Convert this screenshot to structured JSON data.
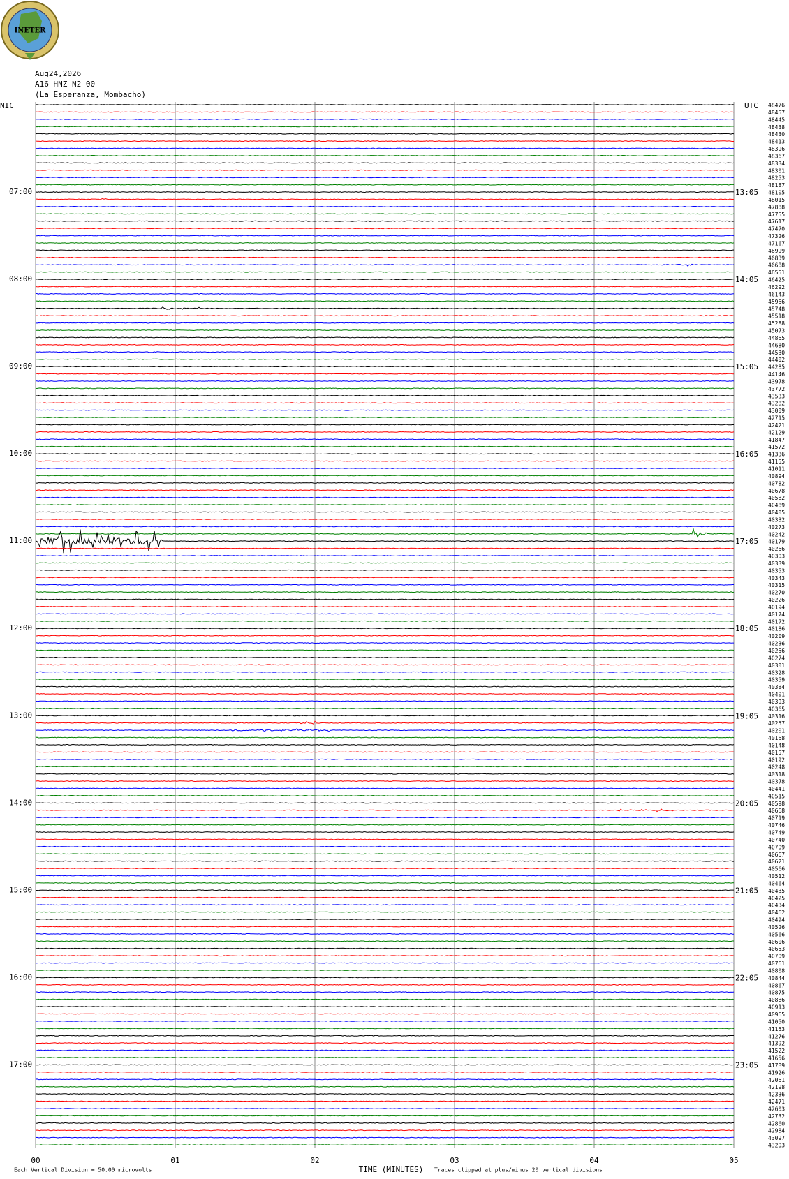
{
  "chart_data": {
    "type": "helicorder",
    "logo": "INETER",
    "date": "Aug24,2026",
    "station": "A16 HNZ N2 00",
    "location": "(La Esperanza, Mombacho)",
    "left_axis_label": "NIC",
    "right_axis_label": "UTC",
    "left_hour_labels": [
      "07:00",
      "08:00",
      "09:00",
      "10:00",
      "11:00",
      "12:00",
      "13:00",
      "14:00",
      "15:00",
      "16:00",
      "17:00"
    ],
    "right_hour_labels": [
      "13:05",
      "14:05",
      "15:05",
      "16:05",
      "17:05",
      "18:05",
      "19:05",
      "20:05",
      "21:05",
      "22:05",
      "23:05"
    ],
    "row_values": [
      48476,
      48457,
      48445,
      48438,
      48430,
      48413,
      48396,
      48367,
      48334,
      48301,
      48253,
      48187,
      48105,
      48015,
      47888,
      47755,
      47617,
      47470,
      47326,
      47167,
      46999,
      46839,
      46688,
      46551,
      46425,
      46292,
      46143,
      45966,
      45748,
      45518,
      45288,
      45073,
      44865,
      44680,
      44530,
      44402,
      44285,
      44146,
      43978,
      43772,
      43533,
      43282,
      43009,
      42715,
      42421,
      42129,
      41847,
      41572,
      41336,
      41155,
      41011,
      40894,
      40782,
      40678,
      40582,
      40489,
      40405,
      40332,
      40273,
      40242,
      40179,
      40266,
      40303,
      40339,
      40353,
      40343,
      40315,
      40270,
      40226,
      40194,
      40174,
      40172,
      40186,
      40209,
      40236,
      40256,
      40274,
      40301,
      40328,
      40359,
      40384,
      40401,
      40393,
      40365,
      40316,
      40257,
      40201,
      40168,
      40148,
      40157,
      40192,
      40248,
      40318,
      40378,
      40441,
      40515,
      40598,
      40668,
      40719,
      40746,
      40749,
      40740,
      40709,
      40667,
      40621,
      40566,
      40512,
      40464,
      40435,
      40425,
      40434,
      40462,
      40494,
      40526,
      40566,
      40606,
      40653,
      40709,
      40761,
      40808,
      40844,
      40867,
      40875,
      40886,
      40913,
      40965,
      41050,
      41153,
      41276,
      41392,
      41522,
      41656,
      41789,
      41926,
      42061,
      42198,
      42336,
      42471,
      42603,
      42732,
      42860,
      42984,
      43097,
      43203
    ],
    "trace_colors": [
      "#000000",
      "#ff0000",
      "#0000ff",
      "#008000"
    ],
    "xlim": [
      0,
      5
    ],
    "xticks": [
      {
        "value": 0,
        "label": "00"
      },
      {
        "value": 1,
        "label": "01"
      },
      {
        "value": 2,
        "label": "02"
      },
      {
        "value": 3,
        "label": "03"
      },
      {
        "value": 4,
        "label": "04"
      },
      {
        "value": 5,
        "label": "05"
      }
    ],
    "xlabel": "TIME (MINUTES)",
    "scale_note": "Each Vertical Division =   50.00 microvolts",
    "clip_note": "Traces clipped at plus/minus 20 vertical divisions"
  }
}
